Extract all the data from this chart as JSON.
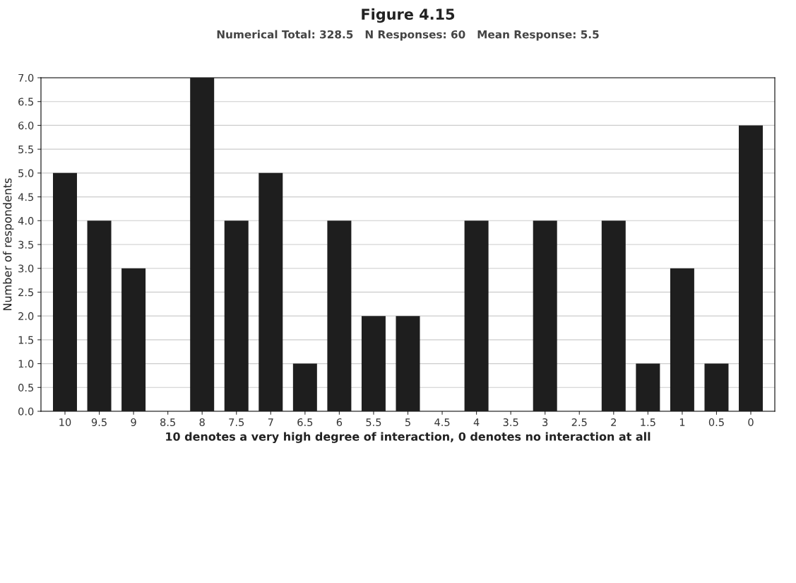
{
  "chart_data": {
    "type": "bar",
    "title": "Figure 4.15",
    "subtitle": "Numerical Total: 328.5   N Responses: 60   Mean Response: 5.5",
    "xlabel": "10 denotes a very high degree of interaction, 0 denotes no interaction at all",
    "ylabel": "Number of respondents",
    "categories": [
      "10",
      "9.5",
      "9",
      "8.5",
      "8",
      "7.5",
      "7",
      "6.5",
      "6",
      "5.5",
      "5",
      "4.5",
      "4",
      "3.5",
      "3",
      "2.5",
      "2",
      "1.5",
      "1",
      "0.5",
      "0"
    ],
    "values": [
      5,
      4,
      3,
      0,
      7,
      4,
      5,
      1,
      4,
      2,
      2,
      0,
      4,
      0,
      4,
      0,
      4,
      1,
      3,
      1,
      6
    ],
    "color": "#1e1e1e",
    "ylim": [
      0,
      7
    ],
    "yticks": [
      {
        "value": 0,
        "label": "0.0"
      },
      {
        "value": 0.5,
        "label": "0.5"
      },
      {
        "value": 1,
        "label": "1.0"
      },
      {
        "value": 1.5,
        "label": "1.5"
      },
      {
        "value": 2,
        "label": "2.0"
      },
      {
        "value": 2.5,
        "label": "2.5"
      },
      {
        "value": 3,
        "label": "3.0"
      },
      {
        "value": 3.5,
        "label": "3.5"
      },
      {
        "value": 4,
        "label": "4.0"
      },
      {
        "value": 4.5,
        "label": "4.5"
      },
      {
        "value": 5,
        "label": "5.0"
      },
      {
        "value": 5.5,
        "label": "5.5"
      },
      {
        "value": 6,
        "label": "6.0"
      },
      {
        "value": 6.5,
        "label": "6.5"
      },
      {
        "value": 7,
        "label": "7.0"
      }
    ],
    "grid": "y"
  }
}
